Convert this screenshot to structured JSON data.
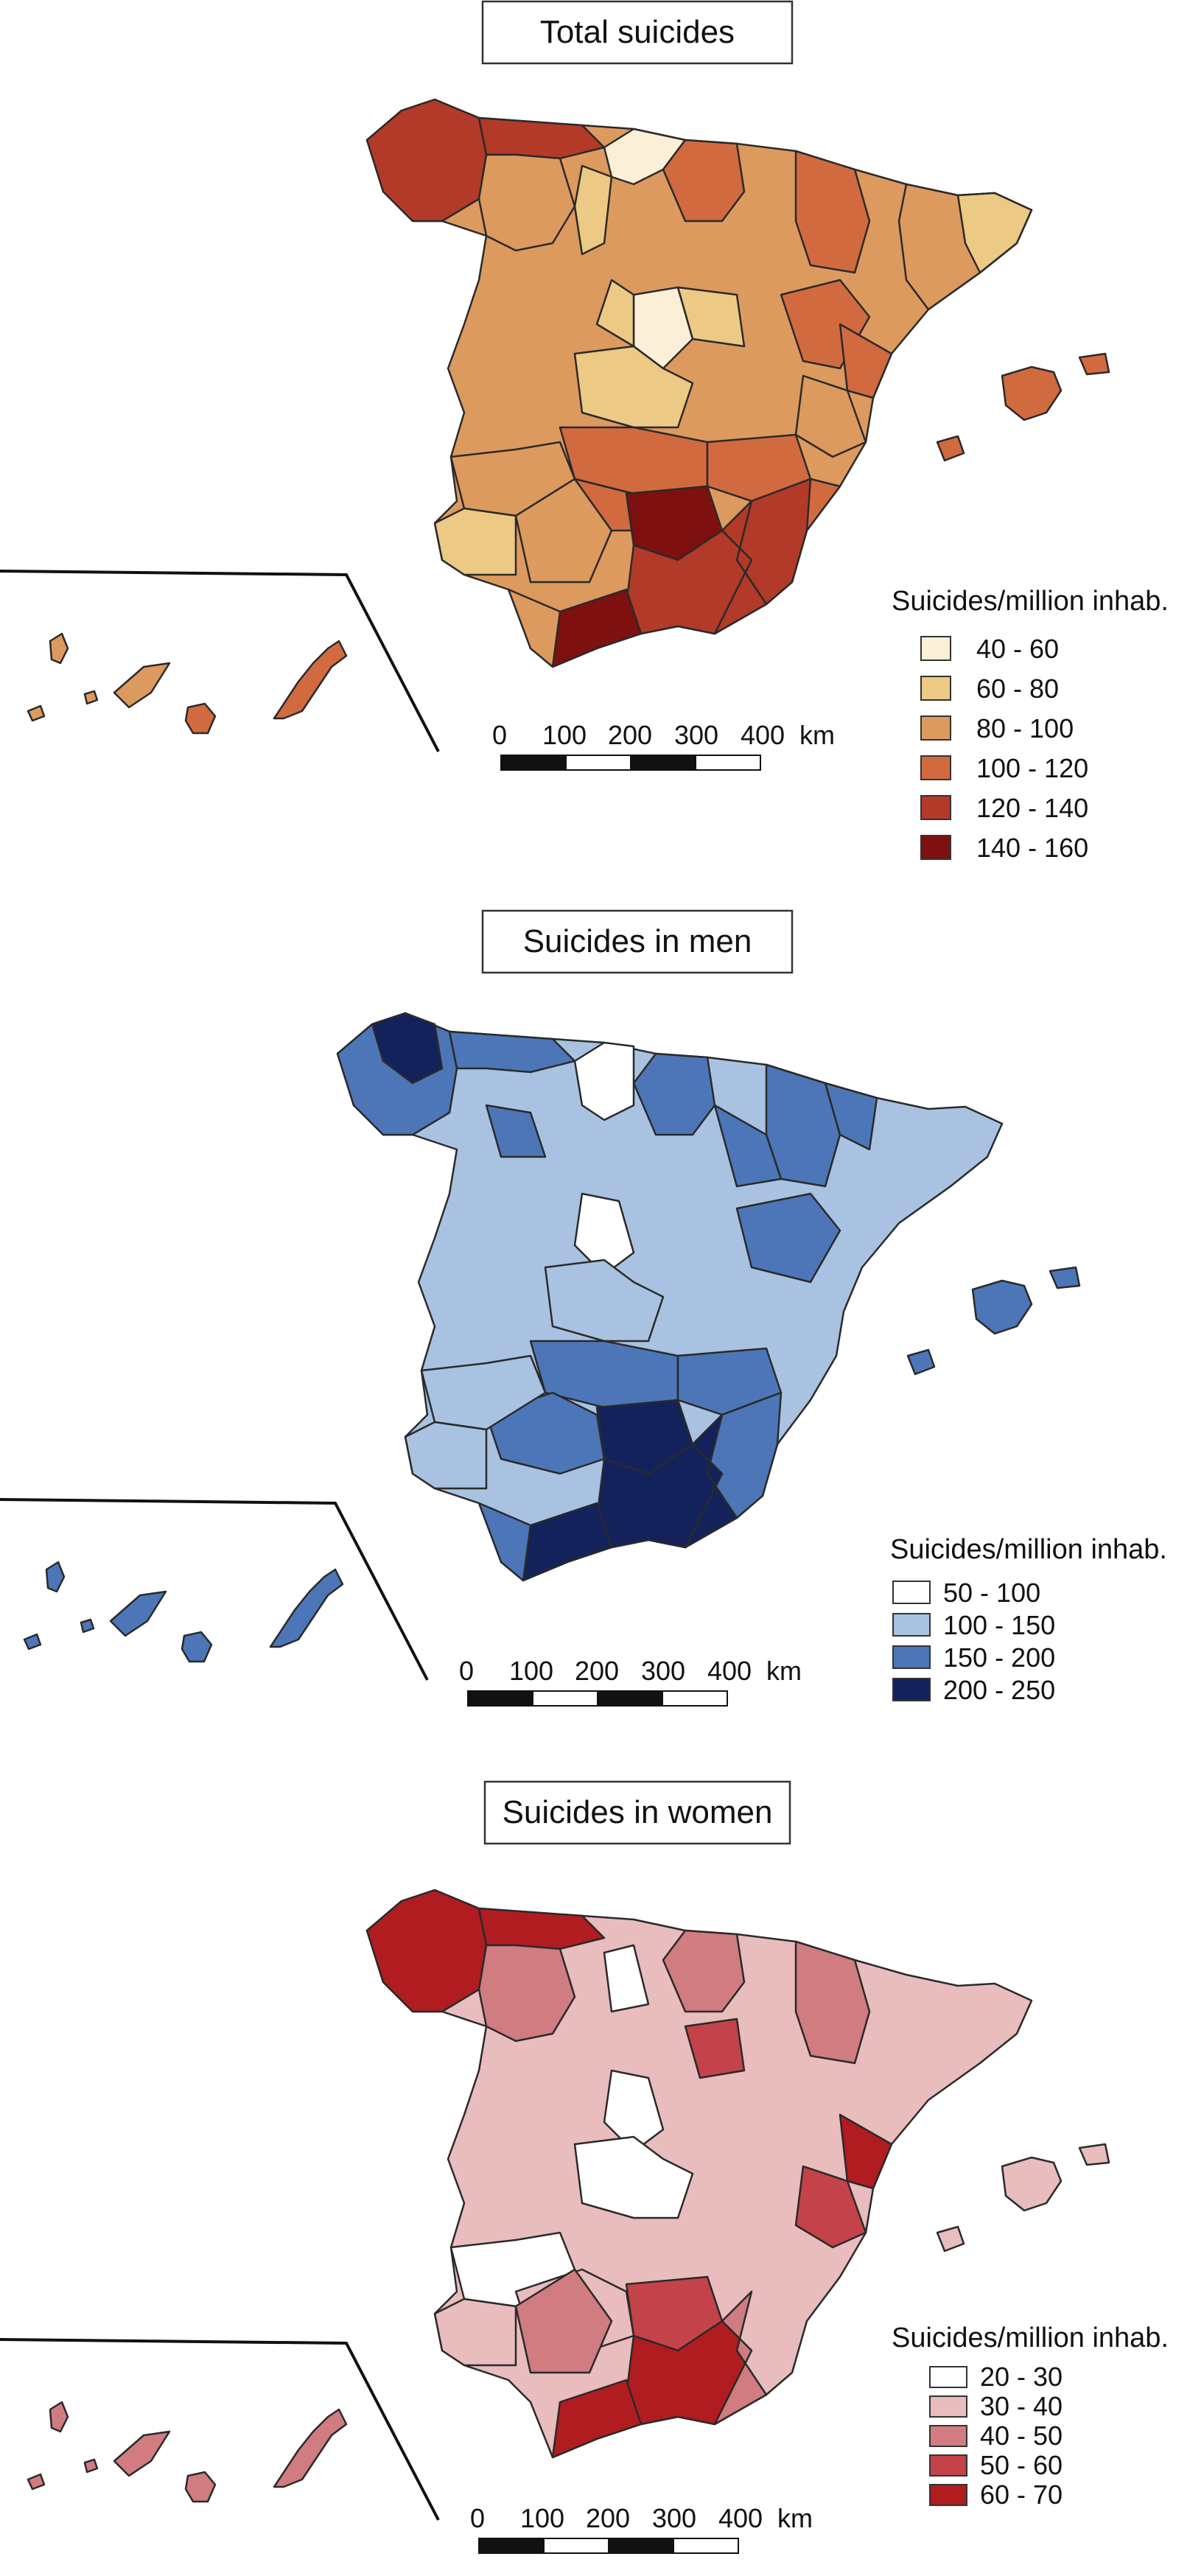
{
  "panels": [
    {
      "title": "Total suicides",
      "legend_title": "Suicides/million inhab.",
      "classes": [
        {
          "label": "40 - 60",
          "color": "#fbefd7"
        },
        {
          "label": "60 - 80",
          "color": "#ecc985"
        },
        {
          "label": "80 - 100",
          "color": "#dd9a5e"
        },
        {
          "label": "100 - 120",
          "color": "#d26a40"
        },
        {
          "label": "120 - 140",
          "color": "#b33a28"
        },
        {
          "label": "140 - 160",
          "color": "#7f1010"
        }
      ],
      "scale": {
        "ticks": [
          "0",
          "100",
          "200",
          "300",
          "400"
        ],
        "unit": "km"
      }
    },
    {
      "title": "Suicides in men",
      "legend_title": "Suicides/million inhab.",
      "classes": [
        {
          "label": "50 - 100",
          "color": "#ffffff"
        },
        {
          "label": "100 - 150",
          "color": "#a9c2e1"
        },
        {
          "label": "150 - 200",
          "color": "#4c76b8"
        },
        {
          "label": "200 - 250",
          "color": "#13225a"
        }
      ],
      "scale": {
        "ticks": [
          "0",
          "100",
          "200",
          "300",
          "400"
        ],
        "unit": "km"
      }
    },
    {
      "title": "Suicides in women",
      "legend_title": "Suicides/million inhab.",
      "classes": [
        {
          "label": "20 - 30",
          "color": "#ffffff"
        },
        {
          "label": "30 - 40",
          "color": "#e9bcbe"
        },
        {
          "label": "40 - 50",
          "color": "#d07c81"
        },
        {
          "label": "50 - 60",
          "color": "#c44249"
        },
        {
          "label": "60 - 70",
          "color": "#b01c20"
        }
      ],
      "scale": {
        "ticks": [
          "0",
          "100",
          "200",
          "300",
          "400"
        ],
        "unit": "km"
      }
    }
  ]
}
